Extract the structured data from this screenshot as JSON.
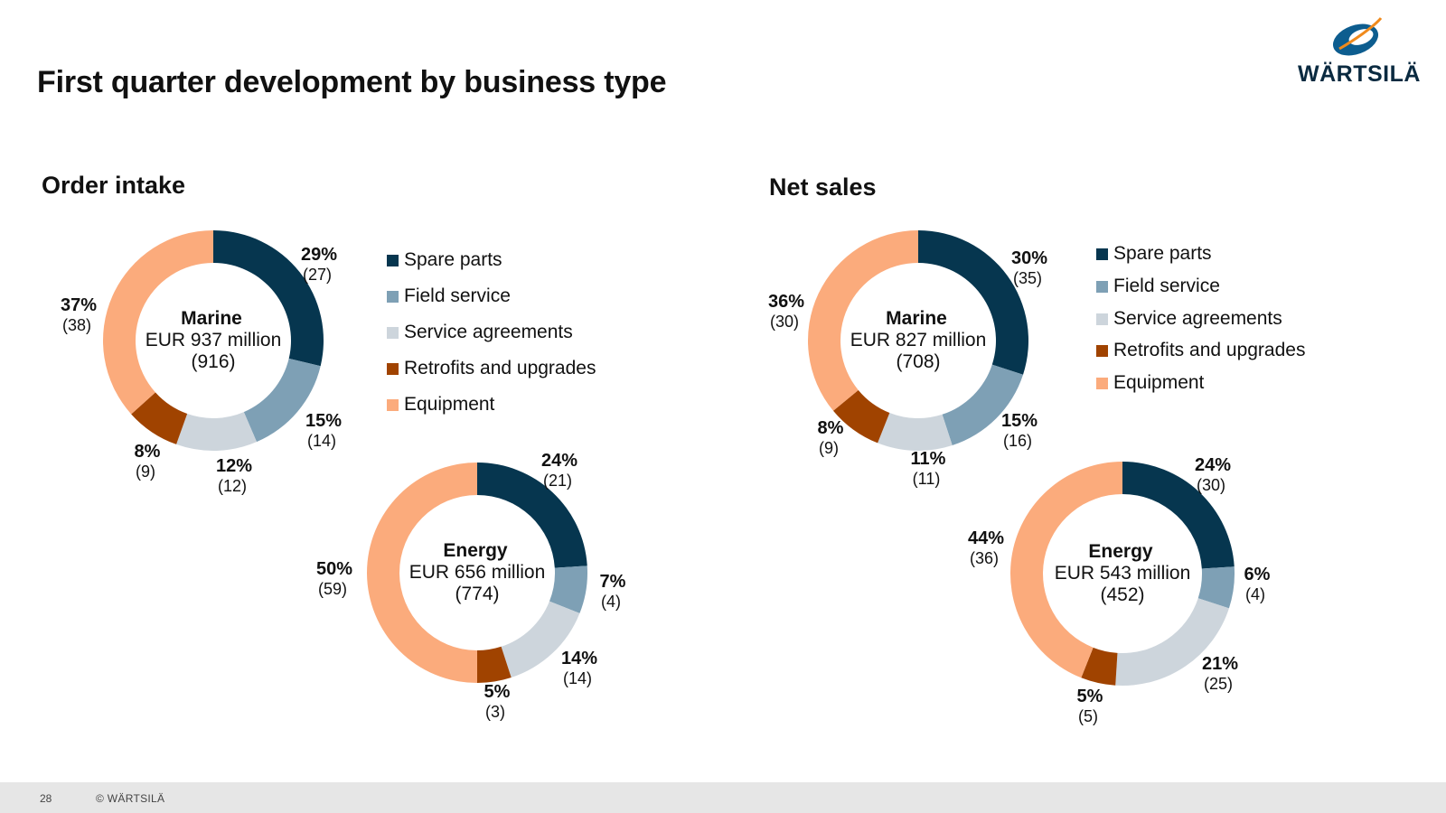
{
  "title": "First quarter development by business type",
  "logo": {
    "text": "WÄRTSILÄ",
    "colors": {
      "arc_blue": "#0d5d8f",
      "arc_orange": "#f08a1c"
    }
  },
  "footer": {
    "page_number": "28",
    "copyright": "© WÄRTSILÄ"
  },
  "colors": {
    "spare_parts": "#06364f",
    "field_service": "#7ea0b5",
    "service_agreements": "#cdd5dc",
    "retrofits": "#a04300",
    "equipment": "#fbab7c"
  },
  "order_intake": {
    "title": "Order intake",
    "legend": [
      "Spare parts",
      "Field service",
      "Service agreements",
      "Retrofits and upgrades",
      "Equipment"
    ]
  },
  "net_sales": {
    "title": "Net sales",
    "legend": [
      "Spare parts",
      "Field service",
      "Service agreements",
      "Retrofits and upgrades",
      "Equipment"
    ]
  },
  "chart_data": [
    {
      "type": "pie",
      "group": "Order intake",
      "center": {
        "name": "Marine",
        "amount": "EUR 937 million",
        "previous": "(916)"
      },
      "categories": [
        "Spare parts",
        "Field service",
        "Service agreements",
        "Retrofits and upgrades",
        "Equipment"
      ],
      "values": [
        29,
        15,
        12,
        8,
        37
      ],
      "labels": [
        "29%",
        "15%",
        "12%",
        "8%",
        "37%"
      ],
      "previous_labels": [
        "(27)",
        "(14)",
        "(12)",
        "(9)",
        "(38)"
      ]
    },
    {
      "type": "pie",
      "group": "Order intake",
      "center": {
        "name": "Energy",
        "amount": "EUR 656 million",
        "previous": "(774)"
      },
      "categories": [
        "Spare parts",
        "Field service",
        "Service agreements",
        "Retrofits and upgrades",
        "Equipment"
      ],
      "values": [
        24,
        7,
        14,
        5,
        50
      ],
      "labels": [
        "24%",
        "7%",
        "14%",
        "5%",
        "50%"
      ],
      "previous_labels": [
        "(21)",
        "(4)",
        "(14)",
        "(3)",
        "(59)"
      ]
    },
    {
      "type": "pie",
      "group": "Net sales",
      "center": {
        "name": "Marine",
        "amount": "EUR 827 million",
        "previous": "(708)"
      },
      "categories": [
        "Spare parts",
        "Field service",
        "Service agreements",
        "Retrofits and upgrades",
        "Equipment"
      ],
      "values": [
        30,
        15,
        11,
        8,
        36
      ],
      "labels": [
        "30%",
        "15%",
        "11%",
        "8%",
        "36%"
      ],
      "previous_labels": [
        "(35)",
        "(16)",
        "(11)",
        "(9)",
        "(30)"
      ]
    },
    {
      "type": "pie",
      "group": "Net sales",
      "center": {
        "name": "Energy",
        "amount": "EUR 543 million",
        "previous": "(452)"
      },
      "categories": [
        "Spare parts",
        "Field service",
        "Service agreements",
        "Retrofits and upgrades",
        "Equipment"
      ],
      "values": [
        24,
        6,
        21,
        5,
        44
      ],
      "labels": [
        "24%",
        "6%",
        "21%",
        "5%",
        "44%"
      ],
      "previous_labels": [
        "(30)",
        "(4)",
        "(25)",
        "(5)",
        "(36)"
      ]
    }
  ]
}
